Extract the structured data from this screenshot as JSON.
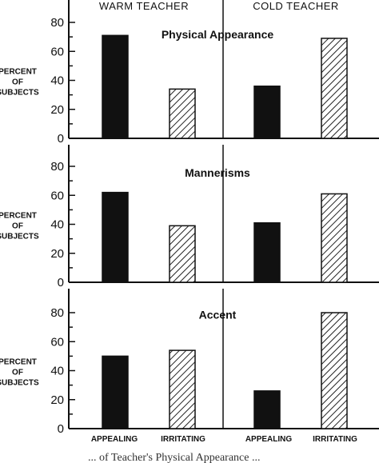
{
  "chart_data": {
    "type": "bar",
    "column_headers": [
      "WARM TEACHER",
      "COLD TEACHER"
    ],
    "categories": [
      "APPEALING",
      "IRRITATING",
      "APPEALING",
      "IRRITATING"
    ],
    "y_label": [
      "PERCENT",
      "OF",
      "SUBJECTS"
    ],
    "ylim": [
      0,
      90
    ],
    "y_ticks": [
      "0",
      "20",
      "40",
      "60",
      "80"
    ],
    "legend": "none",
    "grid": false,
    "panels": [
      {
        "title": "Physical Appearance",
        "values": [
          71,
          34,
          36,
          69
        ]
      },
      {
        "title": "Mannerisms",
        "values": [
          62,
          39,
          41,
          61
        ]
      },
      {
        "title": "Accent",
        "values": [
          50,
          54,
          26,
          80
        ]
      }
    ],
    "bar_styles": [
      "solid",
      "hatched",
      "solid",
      "hatched"
    ],
    "colors": {
      "solid": "#111111",
      "hatch": "#222222",
      "axis": "#111111"
    }
  },
  "caption_partial": "... of Teacher's Physical Appearance ..."
}
